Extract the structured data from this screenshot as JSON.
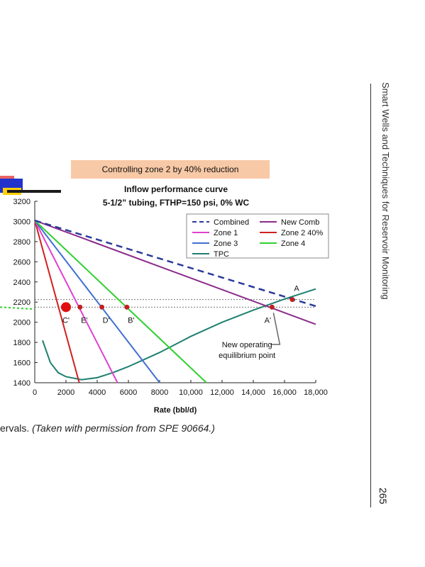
{
  "banner": "Controlling zone 2 by 40% reduction",
  "title_line1": "Inflow performance curve",
  "title_line2": "5-1/2” tubing, FTHP=150 psi, 0% WC",
  "caption_plain": "ervals. ",
  "caption_italic": "(Taken with permission from SPE 90664.)",
  "running_head": "Smart Wells and Techniques for Reservoir Monitoring",
  "page_number": "265",
  "chart_data": {
    "type": "line",
    "title": "Inflow performance curve",
    "subtitle": "5-1/2” tubing, FTHP=150 psi, 0% WC",
    "xlabel": "Rate (bbl/d)",
    "ylabel": "",
    "xlim": [
      0,
      18000
    ],
    "ylim": [
      1400,
      3200
    ],
    "xticks": [
      0,
      2000,
      4000,
      6000,
      8000,
      10000,
      12000,
      14000,
      16000,
      18000
    ],
    "xtick_labels": [
      "0",
      "2000",
      "4000",
      "6000",
      "8000",
      "10,000",
      "12,000",
      "14,000",
      "16,000",
      "18,000"
    ],
    "yticks": [
      1400,
      1600,
      1800,
      2000,
      2200,
      2400,
      2600,
      2800,
      3000,
      3200
    ],
    "ytick_labels": [
      "1400",
      "1600",
      "1800",
      "2000",
      "2200",
      "2400",
      "2600",
      "2800",
      "3000",
      "3200"
    ],
    "legend_position": "top-right",
    "series": [
      {
        "name": "Combined",
        "color": "#2b3b9a",
        "dash": true,
        "x": [
          0,
          18000
        ],
        "y": [
          3010,
          2160
        ]
      },
      {
        "name": "New Comb",
        "color": "#8b2c8b",
        "x": [
          0,
          18000
        ],
        "y": [
          3010,
          1980
        ]
      },
      {
        "name": "Zone 1",
        "color": "#e040d0",
        "x": [
          0,
          5300
        ],
        "y": [
          3010,
          1400
        ]
      },
      {
        "name": "Zone 2 40%",
        "color": "#d02020",
        "x": [
          0,
          2850
        ],
        "y": [
          3010,
          1400
        ]
      },
      {
        "name": "Zone 3",
        "color": "#4070d0",
        "x": [
          0,
          8000
        ],
        "y": [
          3010,
          1400
        ]
      },
      {
        "name": "Zone 4",
        "color": "#30d030",
        "x": [
          0,
          11000
        ],
        "y": [
          3010,
          1400
        ]
      },
      {
        "name": "TPC",
        "color": "#1e8070",
        "x": [
          500,
          1000,
          1500,
          2000,
          3000,
          4000,
          5000,
          6000,
          8000,
          10000,
          12000,
          14000,
          16000,
          18000
        ],
        "y": [
          1820,
          1600,
          1500,
          1460,
          1430,
          1450,
          1500,
          1560,
          1700,
          1860,
          2000,
          2120,
          2230,
          2330
        ]
      }
    ],
    "ref_lines": [
      2225,
      2150
    ],
    "points": [
      {
        "label": "A",
        "x": 16500,
        "y": 2225,
        "color": "#c02020"
      },
      {
        "label": "A'",
        "x": 15200,
        "y": 2150,
        "color": "#c02020"
      },
      {
        "label": "C'",
        "x": 2000,
        "y": 2150,
        "color": "#e01010",
        "big": true
      },
      {
        "label": "E'",
        "x": 2900,
        "y": 2150,
        "color": "#c02020"
      },
      {
        "label": "D'",
        "x": 4300,
        "y": 2150,
        "color": "#c02020"
      },
      {
        "label": "B'",
        "x": 5900,
        "y": 2150,
        "color": "#c02020"
      }
    ],
    "annotation": {
      "text_line1": "New operating",
      "text_line2": "equilibrium point",
      "x": 13600,
      "y": 1750,
      "arrow_to_x": 15200,
      "arrow_to_y": 2150
    }
  }
}
